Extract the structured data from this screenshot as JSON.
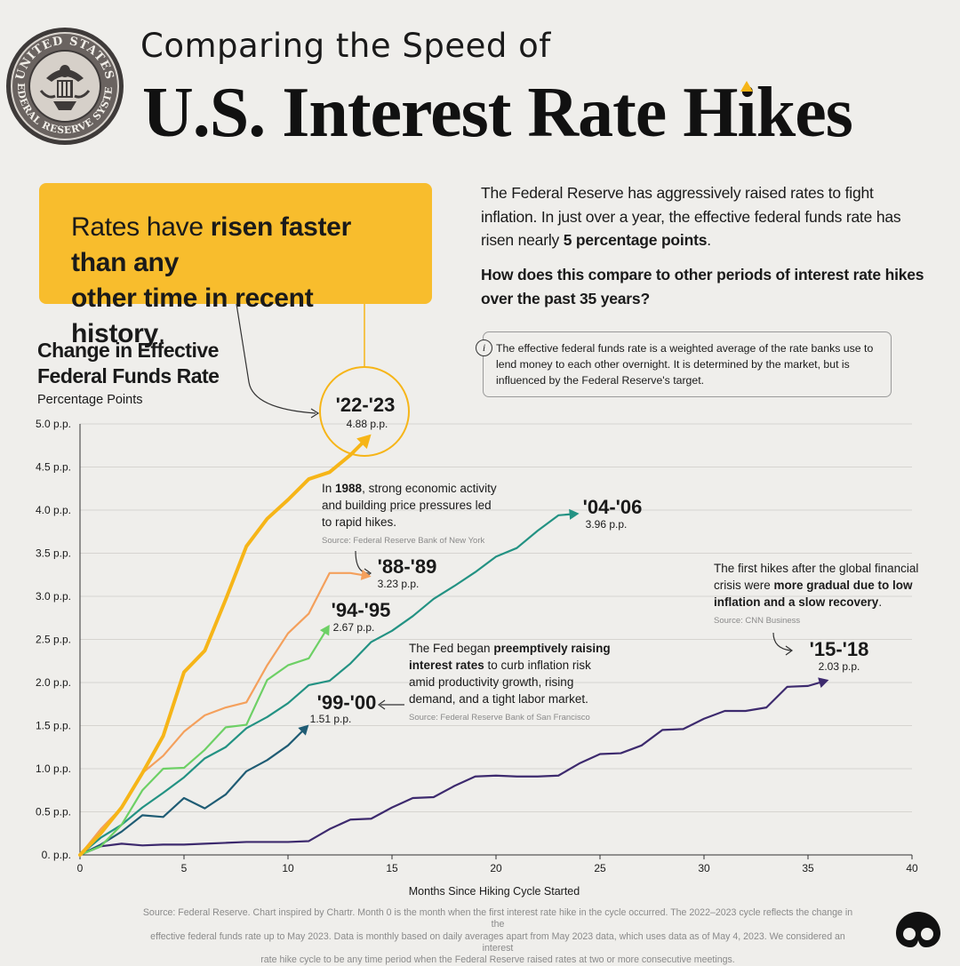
{
  "header": {
    "seal_text_top": "UNITED STATES",
    "seal_text_bottom": "FEDERAL RESERVE SYSTEM",
    "subtitle": "Comparing the Speed of",
    "title_part1": "U.S. Interest Rate H",
    "title_hat_letter": "i",
    "title_part2": "kes"
  },
  "callout": {
    "pre": "Rates have ",
    "bold1": "risen faster than any",
    "bold2": "other time in recent history",
    "post": "."
  },
  "intro": {
    "text": "The Federal Reserve has aggressively raised rates to fight inflation. In just over a year, the effective federal funds rate has risen nearly ",
    "bold": "5 percentage points",
    "end": ".",
    "question": "How does this compare to other periods of interest rate hikes over the past 35 years?"
  },
  "info": {
    "icon": "i",
    "text": "The effective federal funds rate is a weighted average of the rate banks use to lend money to each other overnight. It is determined by the market, but is influenced by the Federal Reserve's target."
  },
  "chart_header": {
    "title_line1": "Change in Effective",
    "title_line2": "Federal Funds Rate",
    "unit": "Percentage Points"
  },
  "annotations": {
    "a1988": {
      "l1_pre": "In ",
      "l1_bold": "1988",
      "l1_post": ", strong economic activity",
      "l2": "and building price pressures led",
      "l3": "to rapid hikes.",
      "source": "Source: Federal Reserve Bank of New York"
    },
    "a1999": {
      "l1_pre": "The Fed began ",
      "l1_bold": "preemptively raising",
      "l2_bold": "interest rates",
      "l2_post": " to curb inflation risk",
      "l3": "amid productivity growth, rising",
      "l4": "demand, and a tight labor market.",
      "source": "Source: Federal Reserve Bank of San Francisco"
    },
    "a2015": {
      "l1": "The first hikes after the global financial",
      "l2_pre": "crisis were ",
      "l2_bold": "more gradual due to low",
      "l3_bold": "inflation and a slow recovery",
      "l3_post": ".",
      "source": "Source: CNN Business"
    }
  },
  "footer": {
    "line1": "Source: Federal Reserve. Chart inspired by Chartr. Month 0 is the month when the first interest rate hike in the cycle occurred. The 2022–2023 cycle reflects the change in the",
    "line2": "effective federal funds rate up to May 2023. Data is monthly based on daily averages apart from May 2023 data, which uses data as of May 4, 2023. We considered an interest",
    "line3": "rate hike cycle to be any time period when the Federal Reserve raised rates at two or more consecutive meetings."
  },
  "chart_data": {
    "type": "line",
    "title": "Change in Effective Federal Funds Rate",
    "ylabel": "Percentage Points",
    "xlabel": "Months Since Hiking Cycle Started",
    "xlim": [
      0,
      40
    ],
    "ylim": [
      0,
      5
    ],
    "x_ticks": [
      0,
      5,
      10,
      15,
      20,
      25,
      30,
      35,
      40
    ],
    "y_ticks": [
      0,
      0.5,
      1.0,
      1.5,
      2.0,
      2.5,
      3.0,
      3.5,
      4.0,
      4.5,
      5.0
    ],
    "y_tick_labels": [
      "0. p.p.",
      "0.5 p.p.",
      "1.0 p.p.",
      "1.5 p.p.",
      "2.0 p.p.",
      "2.5 p.p.",
      "3.0 p.p.",
      "3.5 p.p.",
      "4.0 p.p.",
      "4.5 p.p.",
      "5.0 p.p."
    ],
    "grid": true,
    "legend": "direct labels at line ends",
    "series": [
      {
        "name": "'15-'18",
        "end_label": "2.03 p.p.",
        "color": "#3d2a6e",
        "values": [
          0,
          0.1,
          0.13,
          0.11,
          0.12,
          0.12,
          0.13,
          0.14,
          0.15,
          0.15,
          0.15,
          0.16,
          0.3,
          0.41,
          0.42,
          0.55,
          0.66,
          0.67,
          0.8,
          0.91,
          0.92,
          0.91,
          0.91,
          0.92,
          1.06,
          1.17,
          1.18,
          1.27,
          1.45,
          1.46,
          1.58,
          1.67,
          1.67,
          1.71,
          1.95,
          1.96,
          2.03
        ]
      },
      {
        "name": "'99-'00",
        "end_label": "1.51 p.p.",
        "color": "#1f5c74",
        "values": [
          0,
          0.12,
          0.27,
          0.46,
          0.44,
          0.66,
          0.54,
          0.7,
          0.97,
          1.1,
          1.27,
          1.51
        ]
      },
      {
        "name": "'04-'06",
        "end_label": "3.96 p.p.",
        "color": "#239283",
        "values": [
          0,
          0.2,
          0.35,
          0.55,
          0.72,
          0.9,
          1.12,
          1.25,
          1.47,
          1.6,
          1.76,
          1.97,
          2.02,
          2.22,
          2.47,
          2.6,
          2.77,
          2.97,
          3.12,
          3.28,
          3.46,
          3.56,
          3.76,
          3.94,
          3.96
        ]
      },
      {
        "name": "'94-'95",
        "end_label": "2.67 p.p.",
        "color": "#6dd065",
        "values": [
          0,
          0.1,
          0.35,
          0.75,
          1.0,
          1.01,
          1.22,
          1.48,
          1.51,
          2.03,
          2.2,
          2.28,
          2.67
        ]
      },
      {
        "name": "'88-'89",
        "end_label": "3.23 p.p.",
        "color": "#f4a05c",
        "values": [
          0,
          0.3,
          0.55,
          0.95,
          1.15,
          1.43,
          1.62,
          1.71,
          1.77,
          2.2,
          2.57,
          2.8,
          3.27,
          3.27,
          3.23
        ]
      },
      {
        "name": "'22-'23",
        "end_label": "4.88 p.p.",
        "color": "#f6b518",
        "values": [
          0,
          0.25,
          0.55,
          0.95,
          1.38,
          2.12,
          2.37,
          2.96,
          3.58,
          3.9,
          4.12,
          4.36,
          4.44,
          4.64,
          4.88
        ]
      }
    ]
  }
}
